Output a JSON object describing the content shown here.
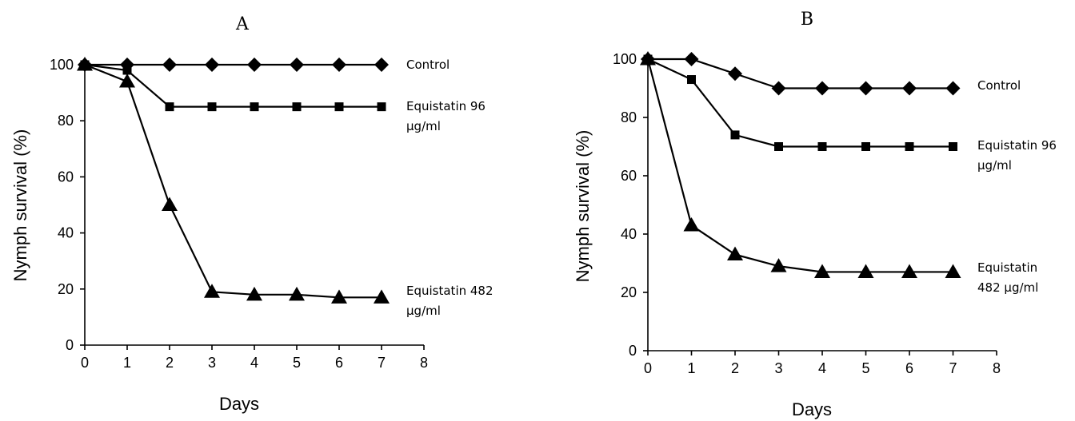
{
  "chart_data": [
    {
      "type": "line",
      "panel": "A",
      "xlabel": "Days",
      "ylabel": "Nymph survival (%)",
      "xlim": [
        0,
        8
      ],
      "ylim": [
        0,
        100
      ],
      "xticks": [
        0,
        1,
        2,
        3,
        4,
        5,
        6,
        7,
        8
      ],
      "yticks": [
        0,
        20,
        40,
        60,
        80,
        100
      ],
      "grid": false,
      "x": [
        0,
        1,
        2,
        3,
        4,
        5,
        6,
        7
      ],
      "series": [
        {
          "label_lines": [
            "Control"
          ],
          "marker": "diamond",
          "values": [
            100,
            100,
            100,
            100,
            100,
            100,
            100,
            100
          ]
        },
        {
          "label_lines": [
            "Equistatin 96",
            "µg/ml"
          ],
          "marker": "square",
          "values": [
            100,
            98,
            85,
            85,
            85,
            85,
            85,
            85
          ]
        },
        {
          "label_lines": [
            "Equistatin 482",
            "µg/ml"
          ],
          "marker": "triangle",
          "values": [
            100,
            94,
            50,
            19,
            18,
            18,
            17,
            17
          ]
        }
      ]
    },
    {
      "type": "line",
      "panel": "B",
      "xlabel": "Days",
      "ylabel": "Nymph survival (%)",
      "xlim": [
        0,
        8
      ],
      "ylim": [
        0,
        100
      ],
      "xticks": [
        0,
        1,
        2,
        3,
        4,
        5,
        6,
        7,
        8
      ],
      "yticks": [
        0,
        20,
        40,
        60,
        80,
        100
      ],
      "grid": false,
      "x": [
        0,
        1,
        2,
        3,
        4,
        5,
        6,
        7
      ],
      "series": [
        {
          "label_lines": [
            "Control"
          ],
          "marker": "diamond",
          "values": [
            100,
            100,
            95,
            90,
            90,
            90,
            90,
            90
          ]
        },
        {
          "label_lines": [
            "Equistatin 96",
            "µg/ml"
          ],
          "marker": "square",
          "values": [
            100,
            93,
            74,
            70,
            70,
            70,
            70,
            70
          ]
        },
        {
          "label_lines": [
            "Equistatin",
            "482 µg/ml"
          ],
          "marker": "triangle",
          "values": [
            100,
            43,
            33,
            29,
            27,
            27,
            27,
            27
          ]
        }
      ]
    }
  ]
}
